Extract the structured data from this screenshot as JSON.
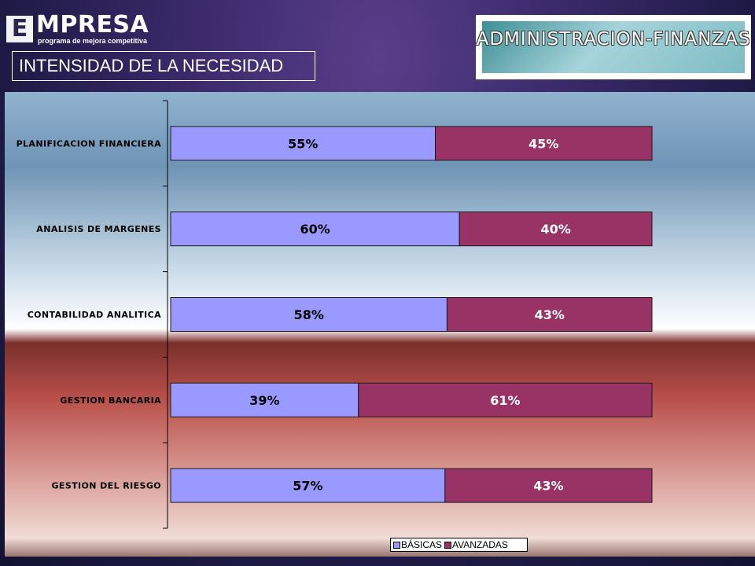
{
  "logo": {
    "letter": "E",
    "word": "MPRESA",
    "tagline": "programa de mejora competitiva"
  },
  "section_title": "INTENSIDAD DE LA NECESIDAD",
  "banner": "ADMINISTRACION-FINANZAS",
  "chart_data": {
    "type": "bar",
    "orientation": "horizontal",
    "stacked": "percent",
    "categories": [
      "PLANIFICACION FINANCIERA",
      "ANALISIS DE MARGENES",
      "CONTABILIDAD ANALITICA",
      "GESTION BANCARIA",
      "GESTION DEL RIESGO"
    ],
    "series": [
      {
        "name": "BÁSICAS",
        "values": [
          55,
          60,
          58,
          39,
          57
        ],
        "labels": [
          "55%",
          "60%",
          "58%",
          "39%",
          "57%"
        ],
        "color": "#9999ff"
      },
      {
        "name": "AVANZADAS",
        "values": [
          45,
          40,
          43,
          61,
          43
        ],
        "labels": [
          "45%",
          "40%",
          "43%",
          "61%",
          "43%"
        ],
        "color": "#993366"
      }
    ],
    "legend_position": "bottom-right",
    "grid": false
  }
}
